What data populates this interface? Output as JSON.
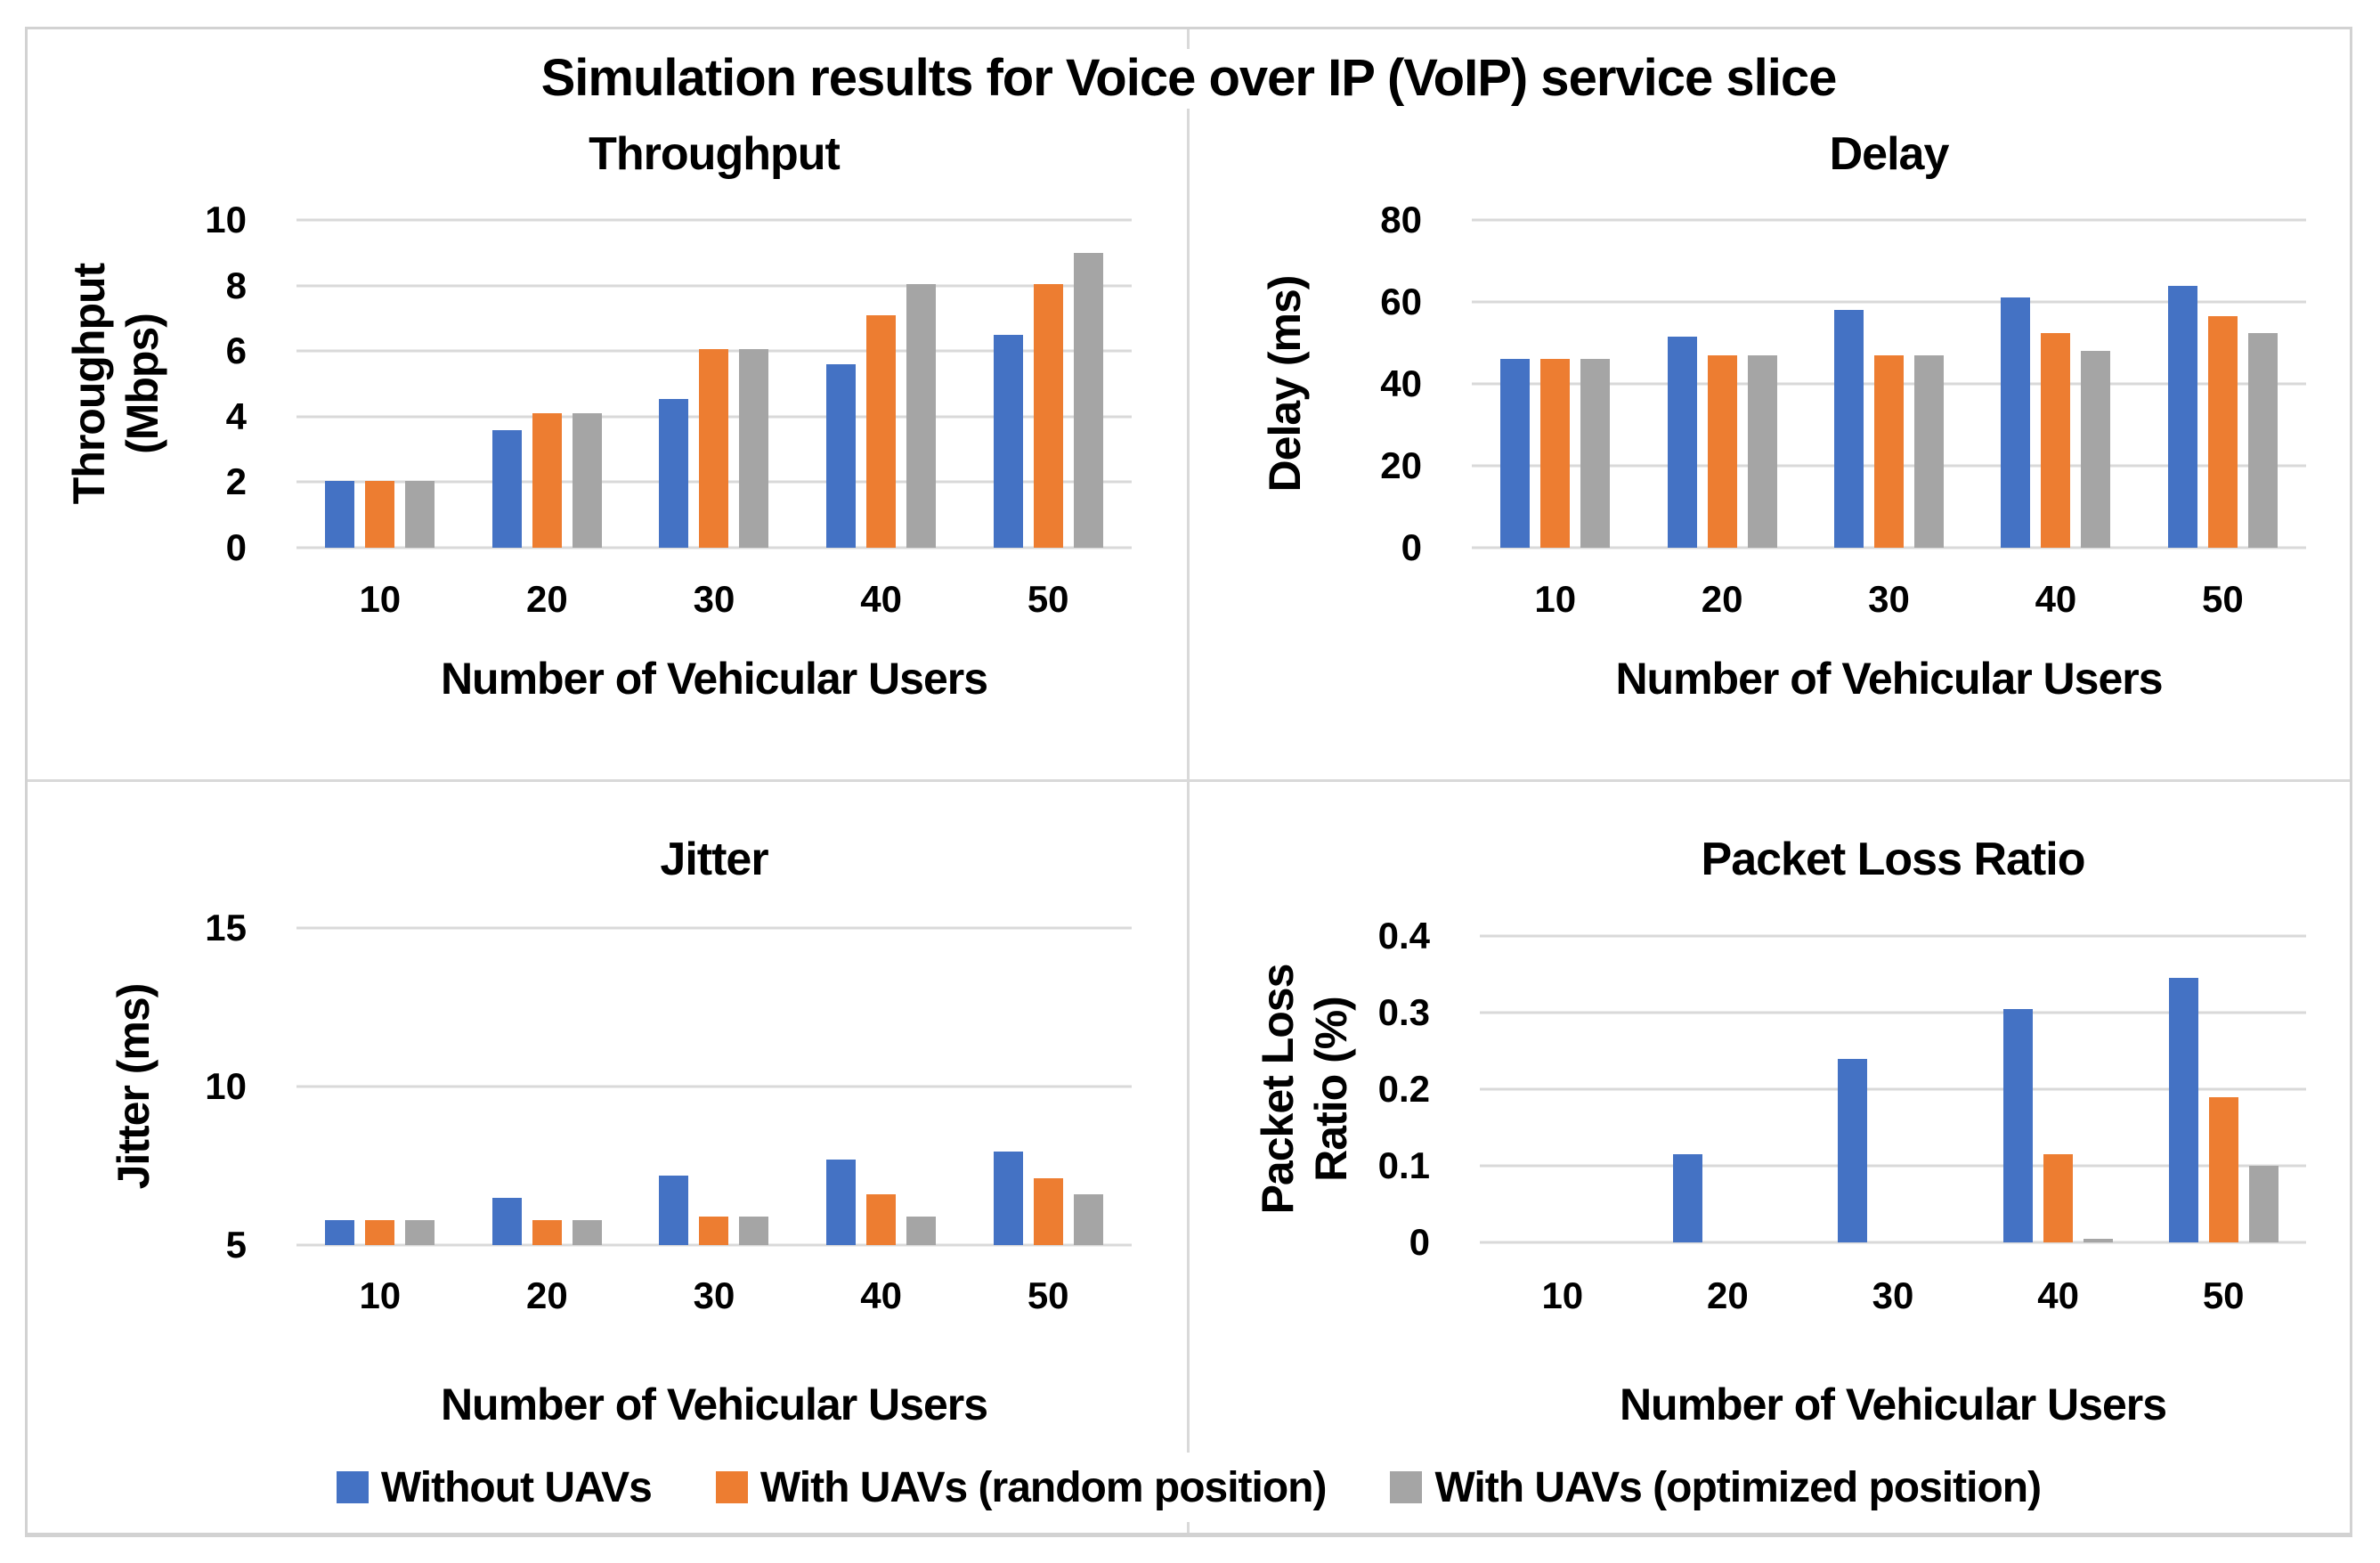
{
  "figure": {
    "title": "Simulation results for Voice over IP (VoIP) service slice"
  },
  "legend": {
    "items": [
      {
        "label": "Without UAVs",
        "color": "#4472C4"
      },
      {
        "label": "With UAVs (random position)",
        "color": "#ED7D31"
      },
      {
        "label": "With UAVs (optimized position)",
        "color": "#A5A5A5"
      }
    ]
  },
  "colors": {
    "gridline": "#D9D9D9",
    "divider": "#D9D9D9",
    "frame_border": "#D2D2D2",
    "text": "#000000"
  },
  "chart_data": [
    {
      "type": "bar",
      "title": "Throughput",
      "xlabel": "Number of Vehicular Users",
      "ylabel_lines": [
        "Throughput",
        "(Mbps)"
      ],
      "categories": [
        "10",
        "20",
        "30",
        "40",
        "50"
      ],
      "ylim": [
        0,
        10
      ],
      "ytick_values": [
        0,
        2,
        4,
        6,
        8,
        10
      ],
      "ytick_labels": [
        "0",
        "2",
        "4",
        "6",
        "8",
        "10"
      ],
      "grid": true,
      "legend_position": "bottom-shared",
      "series": [
        {
          "name": "Without UAVs",
          "color": "#4472C4",
          "values": [
            2.05,
            3.6,
            4.55,
            5.6,
            6.5
          ]
        },
        {
          "name": "With UAVs (random position)",
          "color": "#ED7D31",
          "values": [
            2.05,
            4.1,
            6.05,
            7.1,
            8.05
          ]
        },
        {
          "name": "With UAVs (optimized position)",
          "color": "#A5A5A5",
          "values": [
            2.05,
            4.1,
            6.05,
            8.05,
            9.0
          ]
        }
      ]
    },
    {
      "type": "bar",
      "title": "Delay",
      "xlabel": "Number of Vehicular Users",
      "ylabel_lines": [
        "Delay (ms)"
      ],
      "categories": [
        "10",
        "20",
        "30",
        "40",
        "50"
      ],
      "ylim": [
        0,
        80
      ],
      "ytick_values": [
        0,
        20,
        40,
        60,
        80
      ],
      "ytick_labels": [
        "0",
        "20",
        "40",
        "60",
        "80"
      ],
      "grid": true,
      "legend_position": "bottom-shared",
      "series": [
        {
          "name": "Without UAVs",
          "color": "#4472C4",
          "values": [
            46,
            51.5,
            58,
            61,
            64
          ]
        },
        {
          "name": "With UAVs (random position)",
          "color": "#ED7D31",
          "values": [
            46,
            47,
            47,
            52.5,
            56.5
          ]
        },
        {
          "name": "With UAVs (optimized position)",
          "color": "#A5A5A5",
          "values": [
            46,
            47,
            47,
            48,
            52.5
          ]
        }
      ]
    },
    {
      "type": "bar",
      "title": "Jitter",
      "xlabel": "Number of Vehicular Users",
      "ylabel_lines": [
        "Jitter (ms)"
      ],
      "categories": [
        "10",
        "20",
        "30",
        "40",
        "50"
      ],
      "ylim": [
        5,
        15
      ],
      "ytick_values": [
        5,
        10,
        15
      ],
      "ytick_labels": [
        "5",
        "10",
        "15"
      ],
      "grid": true,
      "legend_position": "bottom-shared",
      "series": [
        {
          "name": "Without UAVs",
          "color": "#4472C4",
          "values": [
            5.8,
            6.5,
            7.2,
            7.7,
            7.95
          ]
        },
        {
          "name": "With UAVs (random position)",
          "color": "#ED7D31",
          "values": [
            5.8,
            5.8,
            5.9,
            6.6,
            7.1
          ]
        },
        {
          "name": "With UAVs (optimized position)",
          "color": "#A5A5A5",
          "values": [
            5.8,
            5.8,
            5.9,
            5.9,
            6.6
          ]
        }
      ]
    },
    {
      "type": "bar",
      "title": "Packet Loss Ratio",
      "xlabel": "Number of Vehicular Users",
      "ylabel_lines": [
        "Packet Loss",
        "Ratio (%)"
      ],
      "categories": [
        "10",
        "20",
        "30",
        "40",
        "50"
      ],
      "ylim": [
        0,
        0.4
      ],
      "ytick_values": [
        0,
        0.1,
        0.2,
        0.3,
        0.4
      ],
      "ytick_labels": [
        "0",
        "0.1",
        "0.2",
        "0.3",
        "0.4"
      ],
      "grid": true,
      "legend_position": "bottom-shared",
      "series": [
        {
          "name": "Without UAVs",
          "color": "#4472C4",
          "values": [
            0,
            0.115,
            0.24,
            0.305,
            0.345
          ]
        },
        {
          "name": "With UAVs (random position)",
          "color": "#ED7D31",
          "values": [
            0,
            0,
            0,
            0.115,
            0.19
          ]
        },
        {
          "name": "With UAVs (optimized position)",
          "color": "#A5A5A5",
          "values": [
            0,
            0,
            0,
            0.005,
            0.1
          ]
        }
      ]
    }
  ]
}
